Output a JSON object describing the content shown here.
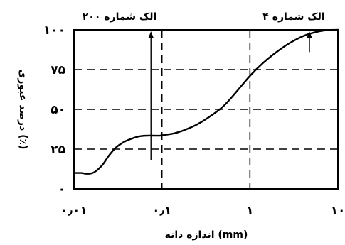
{
  "chart_data": {
    "type": "line",
    "xscale": "log",
    "xlim": [
      0.01,
      10
    ],
    "ylim": [
      0,
      100
    ],
    "x_ticks": [
      0.01,
      0.1,
      1,
      10
    ],
    "x_tick_labels": [
      "۰٫۰۱",
      "۰٫۱",
      "۱",
      "۱۰"
    ],
    "y_ticks": [
      0,
      25,
      50,
      75,
      100
    ],
    "y_tick_labels": [
      "۰",
      "۲۵",
      "۵۰",
      "۷۵",
      "۱۰۰"
    ],
    "xlabel": "اندازه دانه (mm)",
    "ylabel": "درصد عبوری (٪)",
    "grid": true,
    "series": [
      {
        "x": [
          0.01,
          0.012,
          0.0145,
          0.017,
          0.021,
          0.025,
          0.03,
          0.037,
          0.045,
          0.055,
          0.068,
          0.08,
          0.095,
          0.11,
          0.14,
          0.18,
          0.25,
          0.35,
          0.5,
          0.7,
          1.0,
          1.4,
          2.0,
          2.8,
          4.0,
          5.5,
          7.5,
          10
        ],
        "y": [
          10,
          10,
          9.5,
          10.5,
          15,
          21,
          26,
          29.5,
          31.5,
          33,
          33.5,
          33.5,
          33.5,
          34,
          35,
          37,
          40.5,
          45.5,
          52,
          61,
          71,
          79,
          86,
          91.5,
          96,
          98.5,
          99.8,
          100
        ]
      }
    ],
    "annotations": [
      {
        "text": "الک شماره ۲۰۰",
        "x": 0.075,
        "y": 18
      },
      {
        "text": "الک شماره ۴",
        "x": 4.75,
        "y": 86
      }
    ]
  }
}
